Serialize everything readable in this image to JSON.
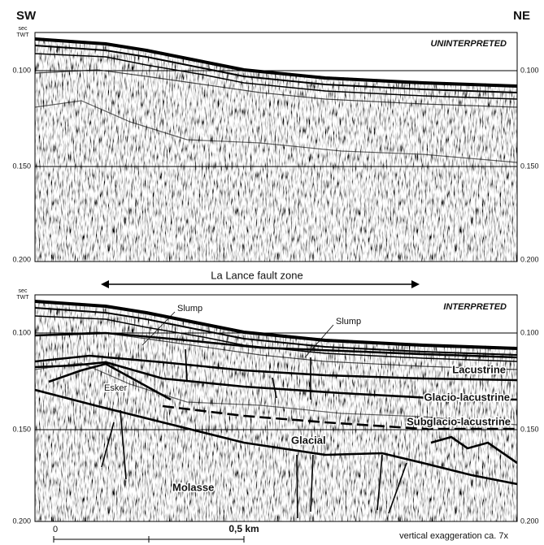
{
  "header": {
    "left": "SW",
    "right": "NE"
  },
  "time_axis": {
    "unit_top": "sec",
    "unit_bottom": "TWT",
    "labels": [
      "0.100",
      "0.150",
      "0.200"
    ]
  },
  "panels": [
    {
      "title": "UNINTERPRETED"
    },
    {
      "title": "INTERPRETED",
      "fault_zone": "La Lance fault zone",
      "labels": [
        "Slump",
        "Slump",
        "Lacustrine",
        "Glacio-lacustrine",
        "Esker",
        "Subglacio-lacustrine",
        "Glacial",
        "Molasse"
      ]
    }
  ],
  "scale": {
    "start": "0",
    "end": "0,5 km",
    "note": "vertical exaggeration  ca. 7x"
  }
}
